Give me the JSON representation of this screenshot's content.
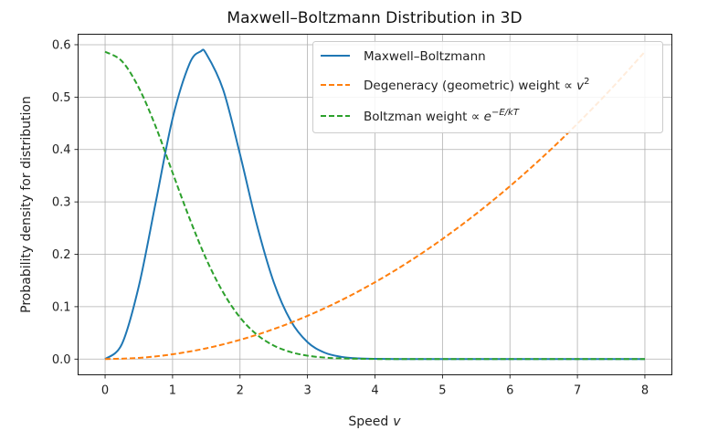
{
  "chart_data": {
    "type": "line",
    "title": "Maxwell–Boltzmann Distribution in 3D",
    "xlabel": "Speed",
    "xlabel_var": "v",
    "ylabel": "Probability density for distribution",
    "xlim": [
      -0.4,
      8.4
    ],
    "ylim": [
      -0.03,
      0.62
    ],
    "xticks": [
      0,
      1,
      2,
      3,
      4,
      5,
      6,
      7,
      8
    ],
    "yticks": [
      0.0,
      0.1,
      0.2,
      0.3,
      0.4,
      0.5,
      0.6
    ],
    "xtick_labels": [
      "0",
      "1",
      "2",
      "3",
      "4",
      "5",
      "6",
      "7",
      "8"
    ],
    "ytick_labels": [
      "0.0",
      "0.1",
      "0.2",
      "0.3",
      "0.4",
      "0.5",
      "0.6"
    ],
    "grid": true,
    "legend_position": "top-right",
    "series": [
      {
        "name": "Maxwell–Boltzmann",
        "style": "solid",
        "color": "#1f77b4",
        "x": [
          0,
          0.25,
          0.5,
          0.75,
          1.0,
          1.25,
          1.414,
          1.5,
          1.75,
          2.0,
          2.25,
          2.5,
          2.75,
          3.0,
          3.25,
          3.5,
          3.75,
          4.0,
          4.5,
          5.0,
          6.0,
          7.0,
          8.0
        ],
        "y": [
          0.0,
          0.0289,
          0.1392,
          0.2988,
          0.4591,
          0.5633,
          0.5871,
          0.5826,
          0.5141,
          0.3906,
          0.2562,
          0.1466,
          0.0734,
          0.0323,
          0.0125,
          0.0043,
          0.0013,
          0.0004,
          3e-05,
          0.0,
          0.0,
          0.0,
          0.0
        ]
      },
      {
        "name": "Degeneracy (geometric) weight ∝ v²",
        "label_text": "Degeneracy (geometric) weight ∝ ",
        "label_var": "v",
        "label_sup": "2",
        "style": "dashed",
        "color": "#ff7f0e",
        "x": [
          0,
          0.5,
          1,
          1.5,
          2,
          2.5,
          3,
          3.5,
          4,
          4.5,
          5,
          5.5,
          6,
          6.5,
          7,
          7.5,
          8
        ],
        "y": [
          0.0,
          0.0023,
          0.0092,
          0.0206,
          0.0367,
          0.0573,
          0.0825,
          0.1123,
          0.1467,
          0.1856,
          0.2292,
          0.2773,
          0.33,
          0.3873,
          0.4492,
          0.5156,
          0.5867
        ]
      },
      {
        "name": "Boltzman weight ∝ e^(−E/kT)",
        "label_text": "Boltzman weight ∝ ",
        "label_var": "e",
        "label_sup": "−E/kT",
        "style": "dashed",
        "color": "#2ca02c",
        "x": [
          0,
          0.25,
          0.5,
          0.75,
          1.0,
          1.25,
          1.5,
          1.75,
          2.0,
          2.25,
          2.5,
          2.75,
          3.0,
          3.25,
          3.5,
          4.0,
          4.5,
          5.0,
          6.0,
          7.0,
          8.0
        ],
        "y": [
          0.5867,
          0.5685,
          0.5178,
          0.4438,
          0.3558,
          0.2691,
          0.1907,
          0.1272,
          0.0794,
          0.0467,
          0.0258,
          0.0134,
          0.0065,
          0.003,
          0.0013,
          0.0002,
          2e-05,
          0.0,
          0.0,
          0.0,
          0.0
        ]
      }
    ]
  }
}
